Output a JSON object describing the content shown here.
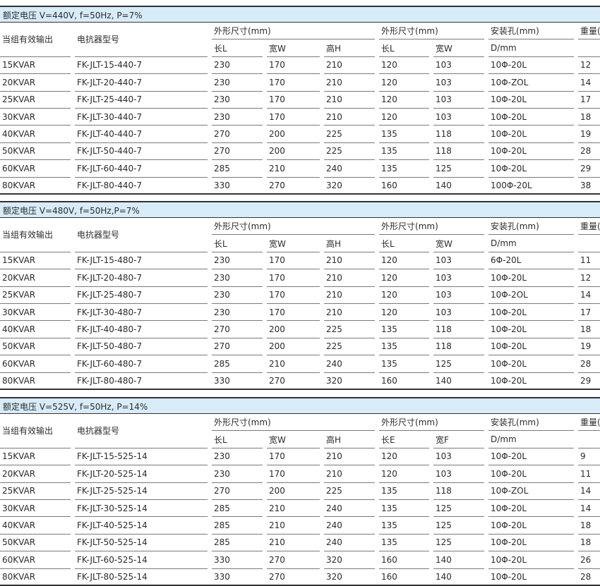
{
  "headers": {
    "output": "当组有效输出",
    "model": "电抗器型号",
    "dims1": "外形尺寸(mm)",
    "dims2": "外形尺寸(mm)",
    "hole": "安装孔(mm)",
    "weight": "重量(KG)",
    "hole_sub": "D/mm"
  },
  "tables": [
    {
      "title": "额定电压 V=440V, f=50Hz, P=7%",
      "sub": [
        "长L",
        "宽W",
        "高H",
        "长L",
        "宽W"
      ],
      "rows": [
        [
          "15KVAR",
          "FK-JLT-15-440-7",
          "230",
          "170",
          "210",
          "120",
          "103",
          "10Φ-20L",
          "12"
        ],
        [
          "20KVAR",
          "FK-JLT-20-440-7",
          "230",
          "170",
          "210",
          "120",
          "103",
          "10Φ-ZOL",
          "14"
        ],
        [
          "25KVAR",
          "FK-JLT-25-440-7",
          "230",
          "170",
          "210",
          "120",
          "103",
          "10Φ-20L",
          "17"
        ],
        [
          "30KVAR",
          "FK-JLT-30-440-7",
          "230",
          "170",
          "210",
          "120",
          "103",
          "10Φ-20L",
          "18"
        ],
        [
          "40KVAR",
          "FK-JLT-40-440-7",
          "270",
          "200",
          "225",
          "135",
          "118",
          "10Φ-20L",
          "19"
        ],
        [
          "50KVAR",
          "FK-JLT-50-440-7",
          "270",
          "200",
          "225",
          "135",
          "118",
          "10Φ-20L",
          "28"
        ],
        [
          "60KVAR",
          "FK-JLT-60-440-7",
          "285",
          "210",
          "240",
          "135",
          "125",
          "10Φ-20L",
          "29"
        ],
        [
          "80KVAR",
          "FK-JLT-80-440-7",
          "330",
          "270",
          "320",
          "160",
          "140",
          "100Φ-20L",
          "38"
        ]
      ]
    },
    {
      "title": "额定电压 V=480V, f=50Hz,P=7%",
      "sub": [
        "长L",
        "宽W",
        "高H",
        "长L",
        "宽W"
      ],
      "rows": [
        [
          "15KVAR",
          "FK-JLT-15-480-7",
          "230",
          "170",
          "210",
          "120",
          "103",
          "6Φ-20L",
          "11"
        ],
        [
          "20KVAR",
          "FK-JLT-20-480-7",
          "230",
          "170",
          "210",
          "120",
          "103",
          "10Φ-20L",
          "12"
        ],
        [
          "25KVAR",
          "FK-JLT-25-480-7",
          "230",
          "170",
          "210",
          "120",
          "103",
          "10Φ-2OL",
          "14"
        ],
        [
          "30KVAR",
          "FK-JLT-30-480-7",
          "230",
          "170",
          "210",
          "120",
          "103",
          "10Φ-20L",
          "17"
        ],
        [
          "40KVAR",
          "FK-JLT-40-480-7",
          "270",
          "200",
          "225",
          "135",
          "118",
          "10Φ-20L",
          "18"
        ],
        [
          "50KVAR",
          "FK-JLT-50-480-7",
          "270",
          "200",
          "225",
          "135",
          "118",
          "10Φ-20L",
          "19"
        ],
        [
          "60KVAR",
          "FK-JLT-60-480-7",
          "285",
          "210",
          "240",
          "135",
          "125",
          "10Φ-20L",
          "28"
        ],
        [
          "80KVAR",
          "FK-JLT-80-480-7",
          "330",
          "270",
          "320",
          "160",
          "140",
          "10Φ-20L",
          "29"
        ]
      ]
    },
    {
      "title": "额定电压 V=525V, f=50Hz, P=14%",
      "sub": [
        "长L",
        "宽W",
        "高H",
        "长E",
        "宽F"
      ],
      "rows": [
        [
          "15KVAR",
          "FK-JLT-15-525-14",
          "230",
          "170",
          "210",
          "120",
          "103",
          "10Φ-20L",
          "9"
        ],
        [
          "20KVAR",
          "FK-JLT-20-525-14",
          "230",
          "170",
          "210",
          "120",
          "103",
          "10Φ-20L",
          "11"
        ],
        [
          "25KVAR",
          "FK-JLT-25-525-14",
          "270",
          "200",
          "225",
          "135",
          "118",
          "10Φ-ZOL",
          "14"
        ],
        [
          "30KVAR",
          "FK-JLT-30-525-14",
          "285",
          "210",
          "240",
          "135",
          "125",
          "10Φ-20L",
          "14"
        ],
        [
          "40KVAR",
          "FK-JLT-40-525-14",
          "285",
          "210",
          "240",
          "135",
          "125",
          "10Φ-20L",
          "18"
        ],
        [
          "50KVAR",
          "FK-JLT-50-525-14",
          "285",
          "210",
          "240",
          "135",
          "125",
          "10Φ-20L",
          "18"
        ],
        [
          "60KVAR",
          "FK-JLT-60-525-14",
          "330",
          "270",
          "320",
          "160",
          "140",
          "10Φ-20L",
          "26"
        ],
        [
          "80KVAR",
          "FK-JLT-80-525-14",
          "330",
          "270",
          "320",
          "160",
          "140",
          "10Φ-20L",
          "28"
        ]
      ]
    }
  ]
}
